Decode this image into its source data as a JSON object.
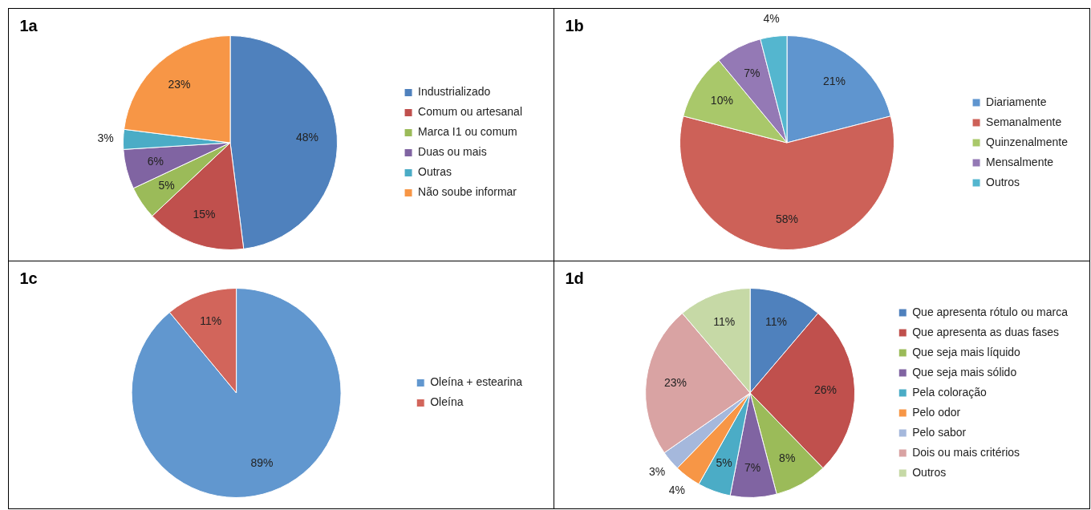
{
  "chart_data": [
    {
      "type": "pie",
      "title": "1a",
      "categories": [
        "Industrializado",
        "Comum ou artesanal",
        "Marca I1 ou comum",
        "Duas ou mais",
        "Outras",
        "Não soube informar"
      ],
      "values": [
        48,
        15,
        5,
        6,
        3,
        23
      ],
      "value_labels": [
        "48%",
        "15%",
        "5%",
        "6%",
        "3%",
        "23%"
      ],
      "colors": [
        "#4f81bd",
        "#c0504d",
        "#9bbb59",
        "#8064a2",
        "#4bacc6",
        "#f79646"
      ],
      "legend": "right"
    },
    {
      "type": "pie",
      "title": "1b",
      "categories": [
        "Diariamente",
        "Semanalmente",
        "Quinzenalmente",
        "Mensalmente",
        "Outros"
      ],
      "values": [
        21,
        58,
        10,
        7,
        4
      ],
      "value_labels": [
        "21%",
        "58%",
        "10%",
        "7%",
        "4%"
      ],
      "colors": [
        "#5f95cf",
        "#cd6158",
        "#a9c86a",
        "#9479b5",
        "#54b6cf"
      ],
      "legend": "right"
    },
    {
      "type": "pie",
      "title": "1c",
      "categories": [
        "Oleína + estearina",
        "Oleína"
      ],
      "values": [
        89,
        11
      ],
      "value_labels": [
        "89%",
        "11%"
      ],
      "colors": [
        "#6197cf",
        "#d2655b"
      ],
      "legend": "right"
    },
    {
      "type": "pie",
      "title": "1d",
      "categories": [
        "Que apresenta rótulo ou marca",
        "Que apresenta as duas fases",
        "Que seja mais líquido",
        "Que seja mais sólido",
        "Pela coloração",
        "Pelo odor",
        "Pelo sabor",
        "Dois ou mais critérios",
        "Outros"
      ],
      "values": [
        11,
        26,
        8,
        7,
        5,
        4,
        3,
        23,
        11
      ],
      "value_labels": [
        "11%",
        "26%",
        "8%",
        "7%",
        "5%",
        "4%",
        "3%",
        "23%",
        "11%"
      ],
      "colors": [
        "#4f81bd",
        "#c0504d",
        "#9bbb59",
        "#8064a2",
        "#4bacc6",
        "#f79646",
        "#a5b8dc",
        "#d9a3a3",
        "#c6d9a6"
      ],
      "legend": "right"
    }
  ]
}
